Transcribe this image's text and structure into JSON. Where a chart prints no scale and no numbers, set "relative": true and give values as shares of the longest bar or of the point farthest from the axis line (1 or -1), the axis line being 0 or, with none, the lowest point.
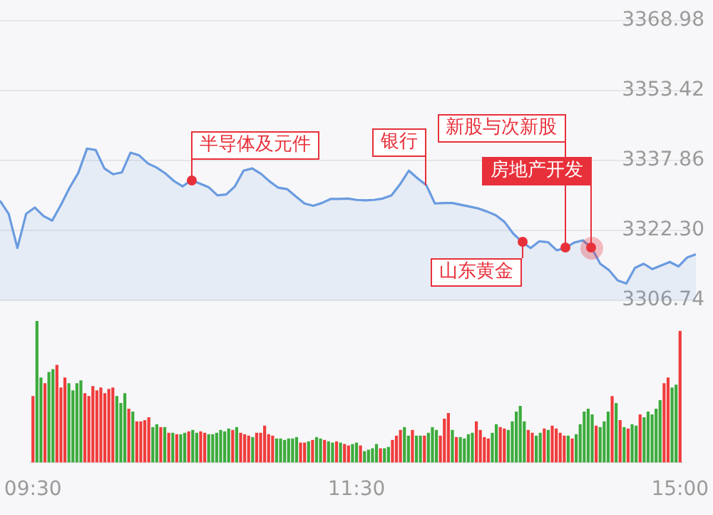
{
  "chart_data": [
    {
      "type": "area",
      "color": "#6a9be0",
      "grid": "y",
      "tick_labels": "y",
      "marker": "none",
      "categories": [
        null,
        null,
        null,
        null,
        null,
        null,
        null,
        null,
        null,
        null,
        null,
        null,
        null,
        null,
        null,
        null,
        null,
        null,
        null,
        null,
        null,
        null,
        null,
        null,
        null,
        null,
        null,
        null,
        null,
        null,
        null,
        null,
        null,
        null,
        null,
        null,
        null,
        null,
        null,
        null,
        null,
        null,
        null,
        null,
        null,
        null,
        null,
        null,
        null,
        null,
        null,
        null,
        null,
        null,
        null,
        null,
        null,
        null,
        null,
        null,
        null,
        null,
        null,
        null,
        null,
        null,
        null,
        null,
        null,
        null,
        null,
        null,
        null,
        null,
        null,
        null,
        null,
        null,
        null,
        null,
        null
      ],
      "values": [
        3328.9,
        3326.0,
        3318.4,
        3326.0,
        3327.4,
        3325.5,
        3324.5,
        3328.0,
        3331.8,
        3335.1,
        3340.5,
        3340.2,
        3336.1,
        3334.8,
        3335.2,
        3339.6,
        3339.0,
        3337.2,
        3336.3,
        3335.0,
        3333.3,
        3332.1,
        3333.5,
        3332.7,
        3331.9,
        3330.1,
        3330.3,
        3332.1,
        3335.6,
        3336.1,
        3334.9,
        3333.2,
        3331.8,
        3331.5,
        3329.9,
        3328.3,
        3327.8,
        3328.4,
        3329.3,
        3329.3,
        3329.4,
        3329.1,
        3329.0,
        3329.1,
        3329.4,
        3330.1,
        3332.6,
        3335.6,
        3333.9,
        3332.4,
        3328.3,
        3328.4,
        3328.4,
        3328.0,
        3327.6,
        3327.2,
        3326.5,
        3325.7,
        3324.2,
        3321.6,
        3319.8,
        3318.4,
        3319.9,
        3319.7,
        3317.9,
        3318.4,
        3319.6,
        3320.1,
        3318.5,
        3314.9,
        3313.5,
        3311.2,
        3310.5,
        3314.0,
        3314.9,
        3313.7,
        3314.5,
        3315.3,
        3314.3,
        3316.3,
        3317.0
      ],
      "ylim": [
        3306.74,
        3368.98
      ],
      "yticks": [
        3306.74,
        {
          "value": 3322.3,
          "label": "3322.30"
        },
        3337.86,
        3353.42,
        3368.98
      ],
      "annotations": [
        "半导体及元件",
        "银行",
        "山东黄金",
        "新股与次新股",
        "房地产开发"
      ]
    },
    {
      "type": "bar",
      "relative": true,
      "categories": [
        "09:30",
        null,
        null,
        null,
        null,
        null,
        null,
        null,
        null,
        null,
        null,
        null,
        null,
        null,
        null,
        null,
        null,
        null,
        null,
        null,
        null,
        null,
        null,
        null,
        null,
        null,
        null,
        null,
        null,
        null,
        null,
        null,
        null,
        null,
        null,
        null,
        null,
        null,
        null,
        null,
        null,
        null,
        null,
        null,
        null,
        null,
        null,
        null,
        null,
        null,
        null,
        null,
        null,
        null,
        null,
        null,
        null,
        null,
        null,
        null,
        null,
        null,
        null,
        null,
        null,
        null,
        null,
        null,
        null,
        null,
        null,
        null,
        null,
        null,
        null,
        null,
        null,
        null,
        null,
        null,
        null,
        "11:30",
        null,
        null,
        null,
        null,
        null,
        null,
        null,
        null,
        null,
        null,
        null,
        null,
        null,
        null,
        null,
        null,
        null,
        null,
        null,
        null,
        null,
        null,
        null,
        null,
        null,
        null,
        null,
        null,
        null,
        null,
        null,
        null,
        null,
        null,
        null,
        null,
        null,
        null,
        null,
        null,
        null,
        null,
        null,
        null,
        null,
        null,
        null,
        null,
        null,
        null,
        null,
        null,
        null,
        null,
        null,
        null,
        null,
        null,
        null,
        null,
        null,
        null,
        null,
        null,
        null,
        null,
        null,
        null,
        null,
        null,
        null,
        null,
        null,
        null,
        null,
        null,
        null,
        null,
        null,
        null,
        "15:00"
      ],
      "values": [
        0.47,
        1.0,
        0.6,
        0.56,
        0.64,
        0.66,
        0.69,
        0.53,
        0.6,
        0.56,
        0.51,
        0.56,
        0.58,
        0.49,
        0.47,
        0.54,
        0.51,
        0.53,
        0.49,
        0.52,
        0.53,
        0.47,
        0.42,
        0.49,
        0.38,
        0.36,
        0.29,
        0.29,
        0.3,
        0.32,
        0.25,
        0.27,
        0.25,
        0.25,
        0.21,
        0.21,
        0.2,
        0.2,
        0.21,
        0.22,
        0.23,
        0.21,
        0.22,
        0.21,
        0.2,
        0.2,
        0.21,
        0.23,
        0.22,
        0.24,
        0.23,
        0.25,
        0.21,
        0.2,
        0.19,
        0.18,
        0.21,
        0.21,
        0.26,
        0.2,
        0.19,
        0.17,
        0.17,
        0.16,
        0.17,
        0.17,
        0.18,
        0.14,
        0.14,
        0.15,
        0.16,
        0.18,
        0.17,
        0.16,
        0.15,
        0.14,
        0.15,
        0.14,
        0.13,
        0.12,
        0.13,
        0.14,
        0.12,
        0.08,
        0.09,
        0.1,
        0.13,
        0.1,
        0.1,
        0.11,
        0.16,
        0.19,
        0.23,
        0.25,
        0.19,
        0.23,
        0.19,
        0.19,
        0.19,
        0.21,
        0.25,
        0.23,
        0.19,
        0.31,
        0.35,
        0.23,
        0.18,
        0.18,
        0.17,
        0.2,
        0.21,
        0.29,
        0.23,
        0.18,
        0.17,
        0.21,
        0.27,
        0.25,
        0.24,
        0.23,
        0.29,
        0.36,
        0.4,
        0.29,
        0.23,
        0.21,
        0.19,
        0.21,
        0.24,
        0.23,
        0.26,
        0.24,
        0.21,
        0.19,
        0.19,
        0.17,
        0.2,
        0.27,
        0.36,
        0.38,
        0.34,
        0.26,
        0.25,
        0.29,
        0.36,
        0.47,
        0.42,
        0.3,
        0.25,
        0.24,
        0.27,
        0.26,
        0.34,
        0.32,
        0.36,
        0.34,
        0.38,
        0.44,
        0.56,
        0.6,
        0.53,
        0.55,
        0.93
      ],
      "colors": [
        "#f03c3c",
        "#3cab3c",
        "#3cab3c",
        "#f03c3c",
        "#3cab3c",
        "#3cab3c",
        "#f03c3c",
        "#f03c3c",
        "#f03c3c",
        "#3cab3c",
        "#3cab3c",
        "#3cab3c",
        "#3cab3c",
        "#f03c3c",
        "#f03c3c",
        "#f03c3c",
        "#f03c3c",
        "#f03c3c",
        "#f03c3c",
        "#f03c3c",
        "#f03c3c",
        "#3cab3c",
        "#3cab3c",
        "#3cab3c",
        "#f03c3c",
        "#3cab3c",
        "#f03c3c",
        "#f03c3c",
        "#f03c3c",
        "#f03c3c",
        "#3cab3c",
        "#3cab3c",
        "#f03c3c",
        "#3cab3c",
        "#f03c3c",
        "#3cab3c",
        "#f03c3c",
        "#3cab3c",
        "#3cab3c",
        "#f03c3c",
        "#3cab3c",
        "#3cab3c",
        "#f03c3c",
        "#f03c3c",
        "#3cab3c",
        "#3cab3c",
        "#3cab3c",
        "#3cab3c",
        "#3cab3c",
        "#3cab3c",
        "#f03c3c",
        "#3cab3c",
        "#f03c3c",
        "#f03c3c",
        "#f03c3c",
        "#3cab3c",
        "#f03c3c",
        "#f03c3c",
        "#f03c3c",
        "#f03c3c",
        "#f03c3c",
        "#3cab3c",
        "#3cab3c",
        "#3cab3c",
        "#3cab3c",
        "#3cab3c",
        "#3cab3c",
        "#f03c3c",
        "#f03c3c",
        "#3cab3c",
        "#f03c3c",
        "#3cab3c",
        "#3cab3c",
        "#f03c3c",
        "#3cab3c",
        "#3cab3c",
        "#f03c3c",
        "#3cab3c",
        "#f03c3c",
        "#f03c3c",
        "#3cab3c",
        "#3cab3c",
        "#f03c3c",
        "#3cab3c",
        "#3cab3c",
        "#3cab3c",
        "#3cab3c",
        "#f03c3c",
        "#3cab3c",
        "#3cab3c",
        "#f03c3c",
        "#f03c3c",
        "#f03c3c",
        "#3cab3c",
        "#3cab3c",
        "#f03c3c",
        "#3cab3c",
        "#3cab3c",
        "#f03c3c",
        "#3cab3c",
        "#3cab3c",
        "#3cab3c",
        "#f03c3c",
        "#f03c3c",
        "#f03c3c",
        "#3cab3c",
        "#f03c3c",
        "#3cab3c",
        "#3cab3c",
        "#3cab3c",
        "#3cab3c",
        "#f03c3c",
        "#f03c3c",
        "#f03c3c",
        "#f03c3c",
        "#3cab3c",
        "#3cab3c",
        "#f03c3c",
        "#f03c3c",
        "#3cab3c",
        "#3cab3c",
        "#3cab3c",
        "#3cab3c",
        "#3cab3c",
        "#f03c3c",
        "#f03c3c",
        "#3cab3c",
        "#3cab3c",
        "#f03c3c",
        "#3cab3c",
        "#f03c3c",
        "#f03c3c",
        "#f03c3c",
        "#f03c3c",
        "#3cab3c",
        "#f03c3c",
        "#3cab3c",
        "#3cab3c",
        "#3cab3c",
        "#3cab3c",
        "#3cab3c",
        "#f03c3c",
        "#3cab3c",
        "#3cab3c",
        "#3cab3c",
        "#f03c3c",
        "#3cab3c",
        "#f03c3c",
        "#3cab3c",
        "#f03c3c",
        "#3cab3c",
        "#3cab3c",
        "#f03c3c",
        "#3cab3c",
        "#3cab3c",
        "#3cab3c",
        "#3cab3c",
        "#3cab3c",
        "#f03c3c",
        "#f03c3c",
        "#3cab3c",
        "#3cab3c",
        "#f03c3c"
      ]
    }
  ]
}
